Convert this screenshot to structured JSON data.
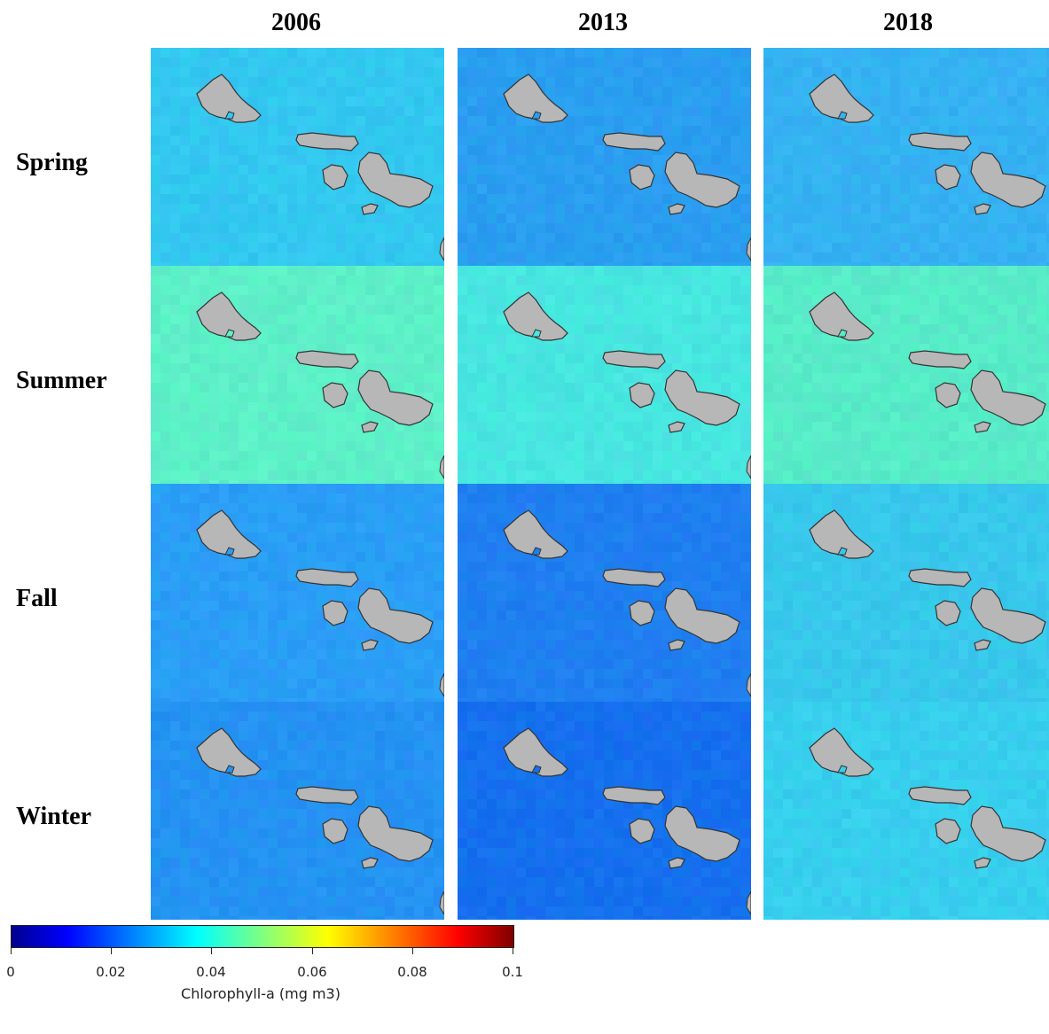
{
  "columns": [
    {
      "label": "2006"
    },
    {
      "label": "2013"
    },
    {
      "label": "2018"
    }
  ],
  "rows": [
    {
      "label": "Spring"
    },
    {
      "label": "Summer"
    },
    {
      "label": "Fall"
    },
    {
      "label": "Winter"
    }
  ],
  "panels": [
    [
      {
        "base": "#33c8f0",
        "tone": "cyan-blue"
      },
      {
        "base": "#2a9ef0",
        "tone": "blue"
      },
      {
        "base": "#35b2f2",
        "tone": "light-blue"
      }
    ],
    [
      {
        "base": "#5ef0c8",
        "tone": "cyan-green"
      },
      {
        "base": "#48e6e0",
        "tone": "cyan"
      },
      {
        "base": "#58ecc8",
        "tone": "cyan-green"
      }
    ],
    [
      {
        "base": "#2a9ef5",
        "tone": "blue"
      },
      {
        "base": "#1f7ff0",
        "tone": "deep-blue"
      },
      {
        "base": "#38c8ec",
        "tone": "cyan-blue"
      }
    ],
    [
      {
        "base": "#2592f2",
        "tone": "blue"
      },
      {
        "base": "#1670ee",
        "tone": "deep-blue"
      },
      {
        "base": "#38cfee",
        "tone": "cyan-blue"
      }
    ]
  ],
  "island_color": "#b7b7b7",
  "colorbar": {
    "title": "Chlorophyll-a (mg m3)",
    "ticks": [
      "0",
      "0.02",
      "0.04",
      "0.06",
      "0.08",
      "0.1"
    ],
    "colors": [
      "#00008f",
      "#0000ff",
      "#0080ff",
      "#00ffff",
      "#80ff80",
      "#ffff00",
      "#ff8000",
      "#ff0000",
      "#800000"
    ]
  }
}
